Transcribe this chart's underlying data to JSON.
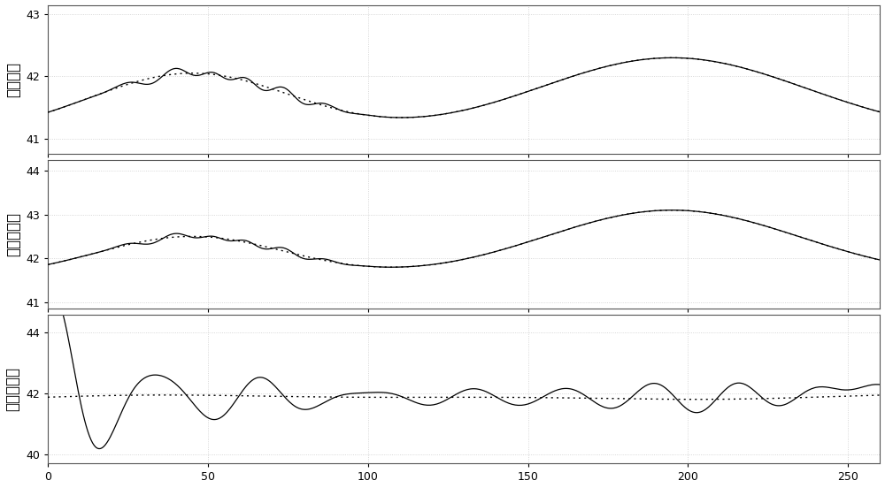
{
  "xlim": [
    0,
    260
  ],
  "subplot1": {
    "ylim": [
      40.75,
      43.15
    ],
    "yticks": [
      41,
      42,
      43
    ],
    "ylabel": "轴居光度"
  },
  "subplot2": {
    "ylim": [
      40.85,
      44.25
    ],
    "yticks": [
      41,
      42,
      43,
      44
    ],
    "ylabel": "折射居光度"
  },
  "subplot3": {
    "ylim": [
      39.7,
      44.6
    ],
    "yticks": [
      40,
      42,
      44
    ],
    "ylabel": "瞬间居光度"
  },
  "xticks": [
    0,
    50,
    100,
    150,
    200,
    250
  ],
  "background_color": "#ffffff",
  "grid_color": "#cccccc",
  "line_color": "#000000",
  "figsize": [
    10.0,
    5.52
  ],
  "dpi": 100
}
